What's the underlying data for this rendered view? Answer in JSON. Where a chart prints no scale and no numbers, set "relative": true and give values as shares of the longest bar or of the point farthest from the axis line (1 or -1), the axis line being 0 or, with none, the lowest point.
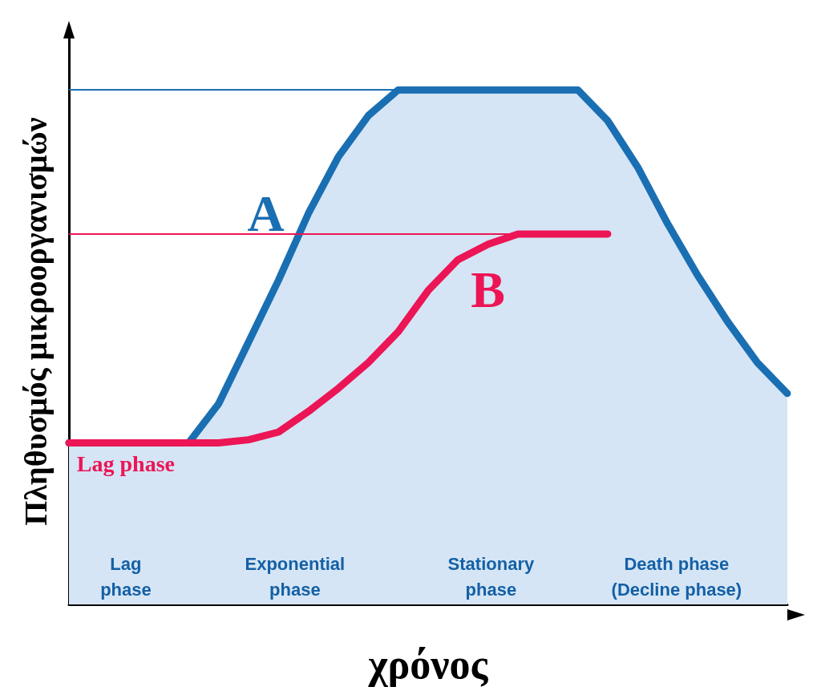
{
  "chart_data": {
    "type": "line",
    "relative": true,
    "xlabel": "χρόνος",
    "ylabel": "Πληθυσμός μικροοργανισμών",
    "categories": [
      null,
      null,
      null,
      null,
      null,
      null,
      null,
      null,
      null,
      null,
      null,
      null,
      null,
      null,
      null,
      null,
      null,
      null,
      null,
      null,
      null,
      null,
      null,
      null,
      null
    ],
    "series": [
      {
        "name": "A",
        "type": "area",
        "color": "#1a6fb3",
        "values": [
          0.314,
          0.314,
          0.314,
          0.314,
          0.314,
          0.39,
          0.51,
          0.63,
          0.76,
          0.87,
          0.95,
          1,
          1,
          1,
          1,
          1,
          1,
          1,
          0.94,
          0.85,
          0.74,
          0.64,
          0.55,
          0.47,
          0.41
        ]
      },
      {
        "name": "B",
        "color": "#ec1556",
        "values": [
          0.314,
          0.314,
          0.314,
          0.314,
          0.314,
          0.314,
          0.32,
          0.335,
          0.375,
          0.42,
          0.47,
          0.53,
          0.61,
          0.67,
          0.7,
          0.72,
          0.72,
          0.72,
          0.72,
          null,
          null,
          null,
          null,
          null,
          null
        ]
      }
    ],
    "ref_lines": [
      {
        "axis": "y",
        "value": 1,
        "color": "#1a6fb3"
      },
      {
        "axis": "y",
        "value": 0.72,
        "color": "#ec1556"
      }
    ],
    "annotations": [
      "Lag phase",
      "Lag\nphase",
      "Exponential\nphase",
      "Stationary\nphase",
      "Death phase\n(Decline phase)"
    ],
    "legend": false,
    "marker": "none",
    "line_style": "solid"
  }
}
